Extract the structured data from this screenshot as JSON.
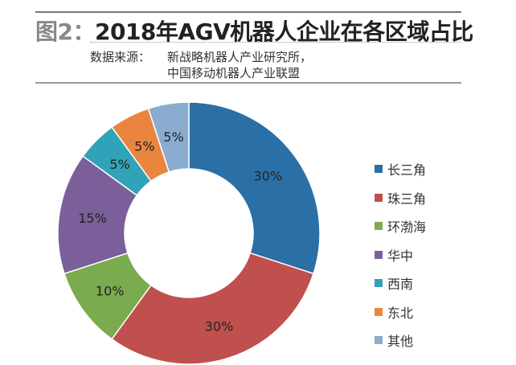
{
  "title_prefix": "图2：",
  "title": "2018年AGV机器人企业在各区域占比",
  "source_label": "数据来源：",
  "source_line1": "新战略机器人产业研究所，",
  "source_line2": "中国移动机器人产业联盟",
  "chart_data": {
    "type": "pie",
    "donut": true,
    "start": "top",
    "direction": "clockwise",
    "legend_position": "right",
    "categories": [
      "长三角",
      "珠三角",
      "环渤海",
      "华中",
      "西南",
      "东北",
      "其他"
    ],
    "values": [
      30,
      30,
      10,
      15,
      5,
      5,
      5
    ],
    "labels": [
      "30%",
      "30%",
      "10%",
      "15%",
      "5%",
      "5%",
      "5%"
    ],
    "colors": [
      "#2a6fa6",
      "#c0504d",
      "#7aab4f",
      "#7a5f9a",
      "#31a3b8",
      "#ea8540",
      "#8aaccf"
    ]
  }
}
